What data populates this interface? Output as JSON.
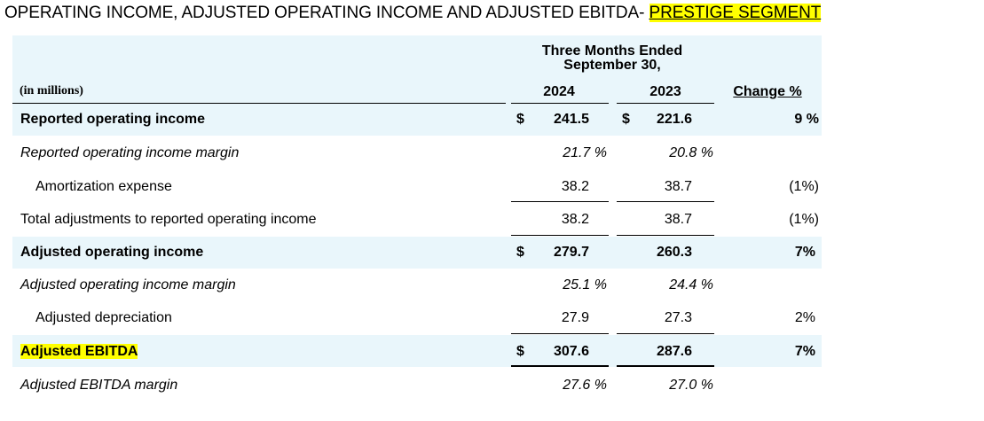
{
  "title": {
    "main": "OPERATING INCOME, ADJUSTED OPERATING INCOME AND ADJUSTED EBITDA- ",
    "highlight": "PRESTIGE SEGMENT"
  },
  "header": {
    "period_line1": "Three Months Ended",
    "period_line2": "September 30,",
    "units": "(in millions)",
    "col_2024": "2024",
    "col_2023": "2023",
    "col_change": "Change %"
  },
  "rows": [
    {
      "label": "Reported operating income",
      "cur": "$",
      "v2024": "241.5",
      "cur2023": "$",
      "v2023": "221.6",
      "change": "9 %"
    },
    {
      "label": "Reported operating income margin",
      "v2024": "21.7 %",
      "v2023": "20.8 %",
      "change": ""
    },
    {
      "label": "Amortization expense",
      "v2024": "38.2",
      "v2023": "38.7",
      "change": "(1%)"
    },
    {
      "label": "Total adjustments to reported operating income",
      "v2024": "38.2",
      "v2023": "38.7",
      "change": "(1%)"
    },
    {
      "label": "Adjusted operating income",
      "cur": "$",
      "v2024": "279.7",
      "v2023": "260.3",
      "change": "7%"
    },
    {
      "label": "Adjusted operating income margin",
      "v2024": "25.1 %",
      "v2023": "24.4 %",
      "change": ""
    },
    {
      "label": "Adjusted depreciation",
      "v2024": "27.9",
      "v2023": "27.3",
      "change": "2%"
    },
    {
      "label": "Adjusted EBITDA",
      "cur": "$",
      "v2024": "307.6",
      "v2023": "287.6",
      "change": "7%"
    },
    {
      "label": "Adjusted EBITDA margin",
      "v2024": "27.6 %",
      "v2023": "27.0 %",
      "change": ""
    }
  ]
}
